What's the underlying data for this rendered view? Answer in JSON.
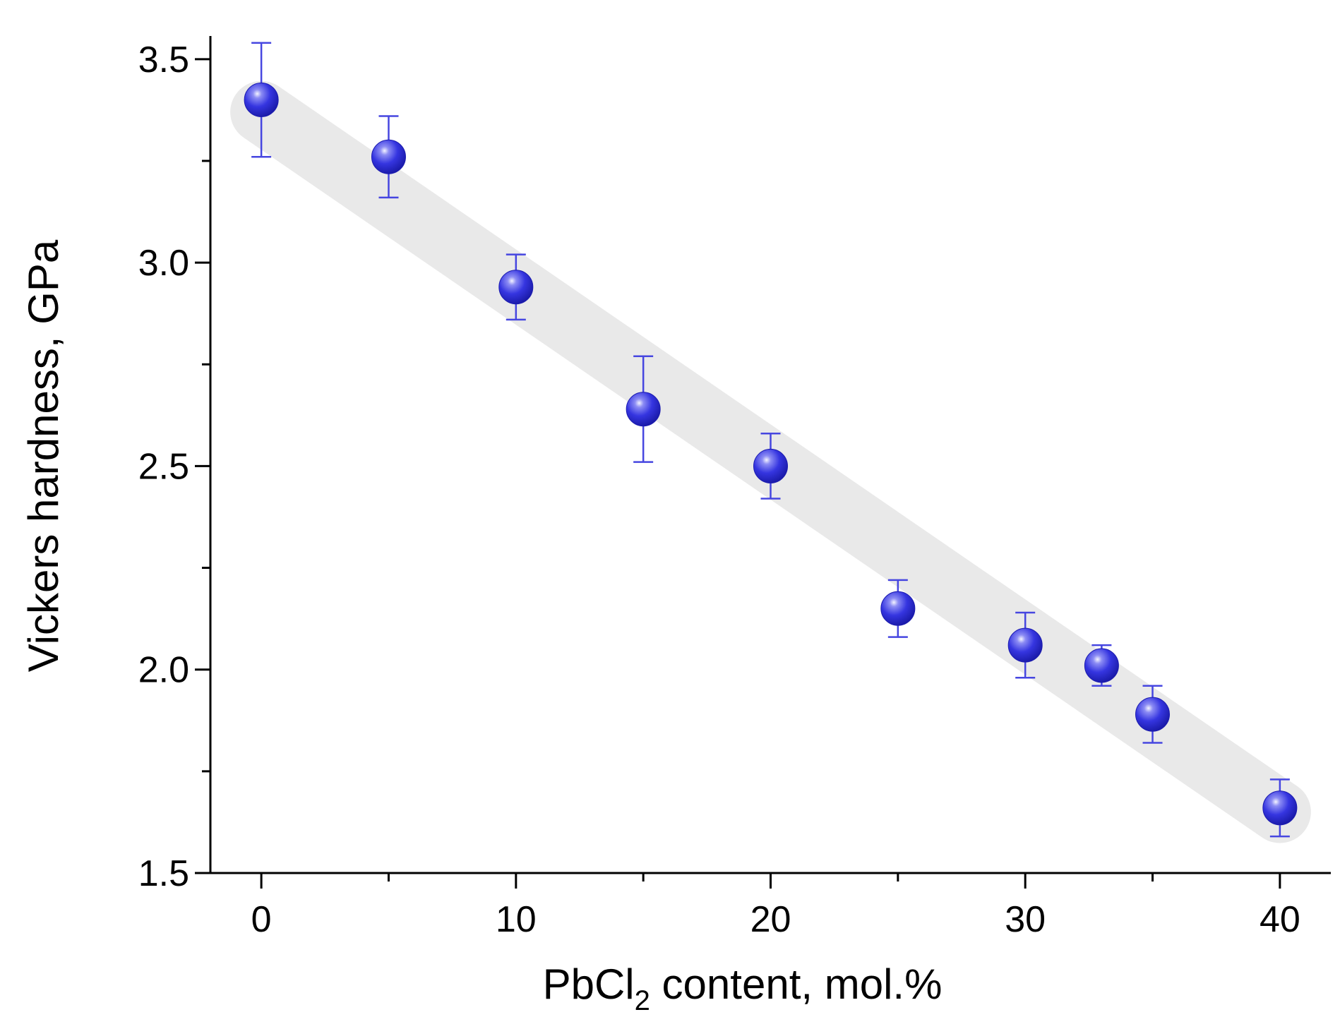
{
  "chart_data": {
    "type": "scatter",
    "title": "",
    "xlabel": {
      "prefix": "PbCl",
      "subscript": "2",
      "suffix": " content, mol.%"
    },
    "ylabel": "Vickers hardness, GPa",
    "xlim": [
      -2,
      42
    ],
    "ylim": [
      1.5,
      3.55
    ],
    "x_ticks": [
      0,
      10,
      20,
      30,
      40
    ],
    "x_tick_labels": [
      "0",
      "10",
      "20",
      "30",
      "40"
    ],
    "x_minor_ticks": [
      5,
      15,
      25,
      35
    ],
    "y_ticks": [
      1.5,
      2.0,
      2.5,
      3.0,
      3.5
    ],
    "y_tick_labels": [
      "1.5",
      "2.0",
      "2.5",
      "3.0",
      "3.5"
    ],
    "y_minor_ticks": [
      1.75,
      2.25,
      2.75,
      3.25
    ],
    "grid": false,
    "legend": "none",
    "series": [
      {
        "points": [
          {
            "x": 0,
            "y": 3.4,
            "err_low": 3.26,
            "err_high": 3.54
          },
          {
            "x": 5,
            "y": 3.26,
            "err_low": 3.16,
            "err_high": 3.36
          },
          {
            "x": 10,
            "y": 2.94,
            "err_low": 2.86,
            "err_high": 3.02
          },
          {
            "x": 15,
            "y": 2.64,
            "err_low": 2.51,
            "err_high": 2.77
          },
          {
            "x": 20,
            "y": 2.5,
            "err_low": 2.42,
            "err_high": 2.58
          },
          {
            "x": 25,
            "y": 2.15,
            "err_low": 2.08,
            "err_high": 2.22
          },
          {
            "x": 30,
            "y": 2.06,
            "err_low": 1.98,
            "err_high": 2.14
          },
          {
            "x": 33,
            "y": 2.01,
            "err_low": 1.96,
            "err_high": 2.06
          },
          {
            "x": 35,
            "y": 1.89,
            "err_low": 1.82,
            "err_high": 1.96
          },
          {
            "x": 40,
            "y": 1.66,
            "err_low": 1.59,
            "err_high": 1.73
          }
        ]
      }
    ],
    "trend_band": {
      "x": [
        0,
        40
      ],
      "y": [
        3.37,
        1.65
      ]
    },
    "colors": {
      "marker": "#3a3ae6",
      "error_bar": "#4646e0",
      "trend_band": "#e9e9e9",
      "axis": "#000000"
    }
  }
}
